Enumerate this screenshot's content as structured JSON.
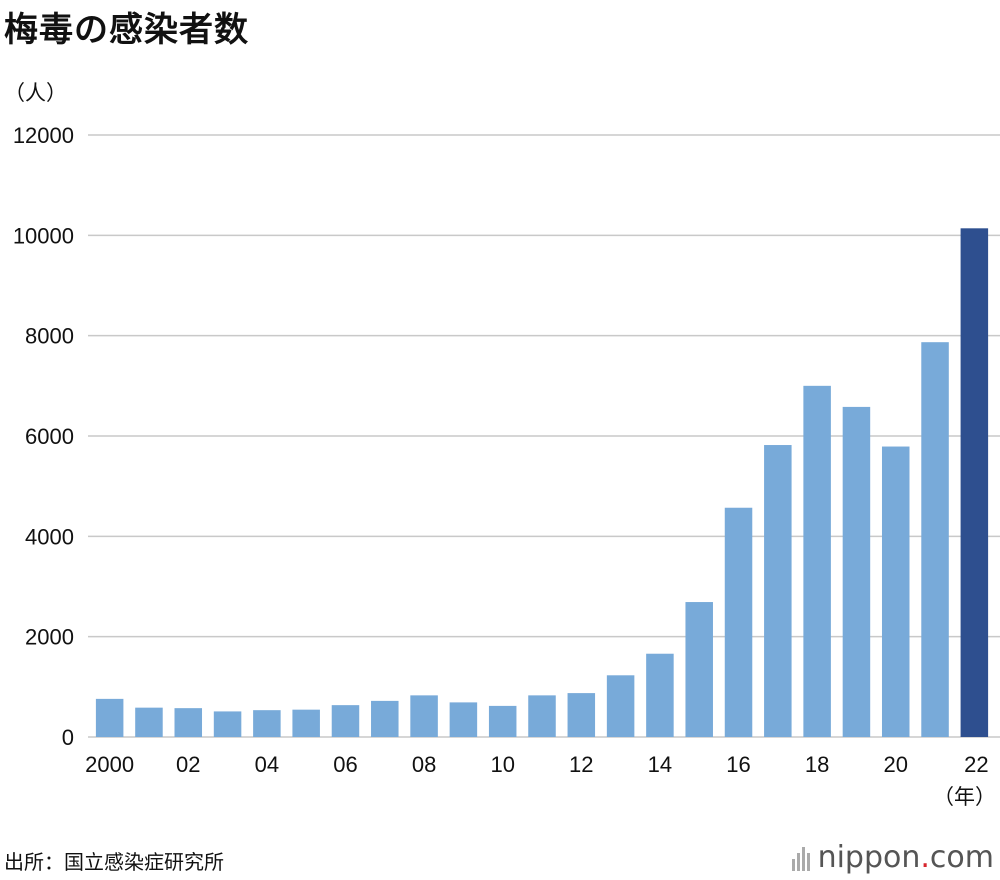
{
  "chart_data": {
    "type": "bar",
    "title": "梅毒の感染者数",
    "ylabel": "（人）",
    "xlabel": "（年）",
    "ylim": [
      0,
      12000
    ],
    "yticks": [
      "0",
      "2000",
      "4000",
      "6000",
      "8000",
      "10000",
      "12000"
    ],
    "categories": [
      "2000",
      "01",
      "02",
      "03",
      "04",
      "05",
      "06",
      "07",
      "08",
      "09",
      "10",
      "11",
      "12",
      "13",
      "14",
      "15",
      "16",
      "17",
      "18",
      "19",
      "20",
      "21",
      "22"
    ],
    "xtick_labels": [
      "2000",
      "",
      "02",
      "",
      "04",
      "",
      "06",
      "",
      "08",
      "",
      "10",
      "",
      "12",
      "",
      "14",
      "",
      "16",
      "",
      "18",
      "",
      "20",
      "",
      "22"
    ],
    "values": [
      760,
      585,
      575,
      510,
      535,
      545,
      635,
      720,
      830,
      690,
      620,
      830,
      875,
      1230,
      1660,
      2690,
      4570,
      5820,
      7000,
      6580,
      5790,
      7870,
      10140
    ],
    "bar_color": "#78aad9",
    "highlight_color": "#2e4f8f",
    "highlight_index": 22,
    "grid": true,
    "legend": "none"
  },
  "footer": {
    "source": "出所：国立感染症研究所",
    "logo_main": "nippon",
    "logo_dot": ".",
    "logo_tld": "com"
  }
}
